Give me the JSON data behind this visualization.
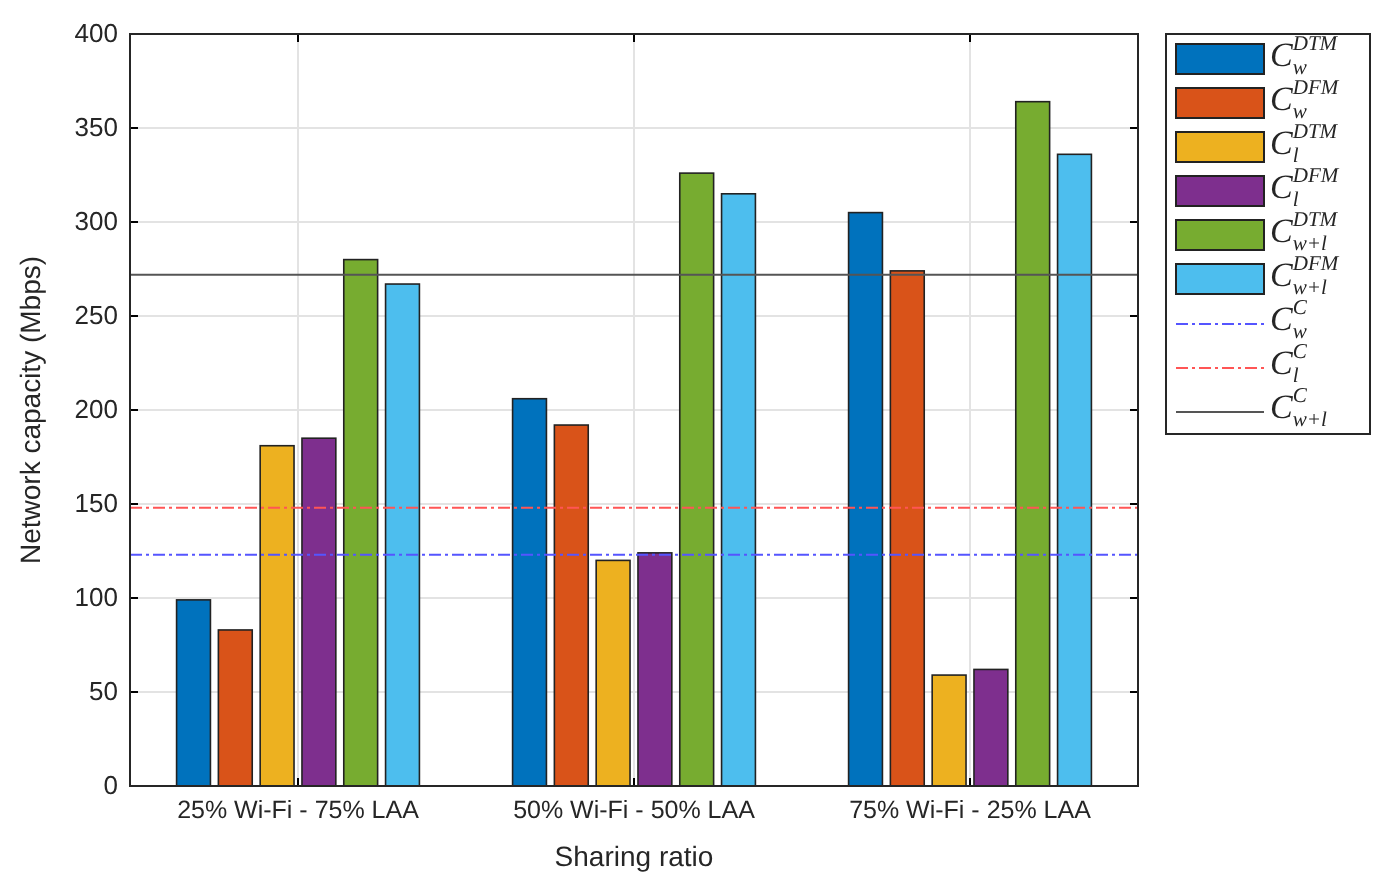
{
  "chart_data": {
    "type": "bar",
    "xlabel": "Sharing ratio",
    "ylabel": "Network capacity (Mbps)",
    "categories": [
      "25% Wi-Fi - 75% LAA",
      "50% Wi-Fi - 50% LAA",
      "75% Wi-Fi - 25% LAA"
    ],
    "series": [
      {
        "name": "C$_{w}$$^{DTM}$",
        "color": "#0072bd",
        "values": [
          99,
          206,
          305
        ]
      },
      {
        "name": "C$_{w}$$^{DFM}$",
        "color": "#d95319",
        "values": [
          83,
          192,
          274
        ]
      },
      {
        "name": "C$_{l}$$^{DTM}$",
        "color": "#edb120",
        "values": [
          181,
          120,
          59
        ]
      },
      {
        "name": "C$_{l}$$^{DFM}$",
        "color": "#7e2f8e",
        "values": [
          185,
          124,
          62
        ]
      },
      {
        "name": "C$_{w+l}$$^{DTM}$",
        "color": "#77ac30",
        "values": [
          280,
          326,
          364
        ]
      },
      {
        "name": "C$_{w+l}$$^{DFM}$",
        "color": "#4dbeee",
        "values": [
          267,
          315,
          336
        ]
      }
    ],
    "ref_lines": [
      {
        "axis": "y",
        "value": 123,
        "label": "C$_{w}$$^{C}$",
        "color": "#5555ff",
        "line_style": "dashdot"
      },
      {
        "axis": "y",
        "value": 148,
        "label": "C$_{l}$$^{C}$",
        "color": "#ff5555",
        "line_style": "dashdot"
      },
      {
        "axis": "y",
        "value": 272,
        "label": "C$_{w+l}$$^{C}$",
        "color": "#555555",
        "line_style": "solid"
      }
    ],
    "ylim": [
      0,
      400
    ],
    "yticks": [
      0,
      50,
      100,
      150,
      200,
      250,
      300,
      350,
      400
    ],
    "grid": true,
    "legend": "right"
  }
}
